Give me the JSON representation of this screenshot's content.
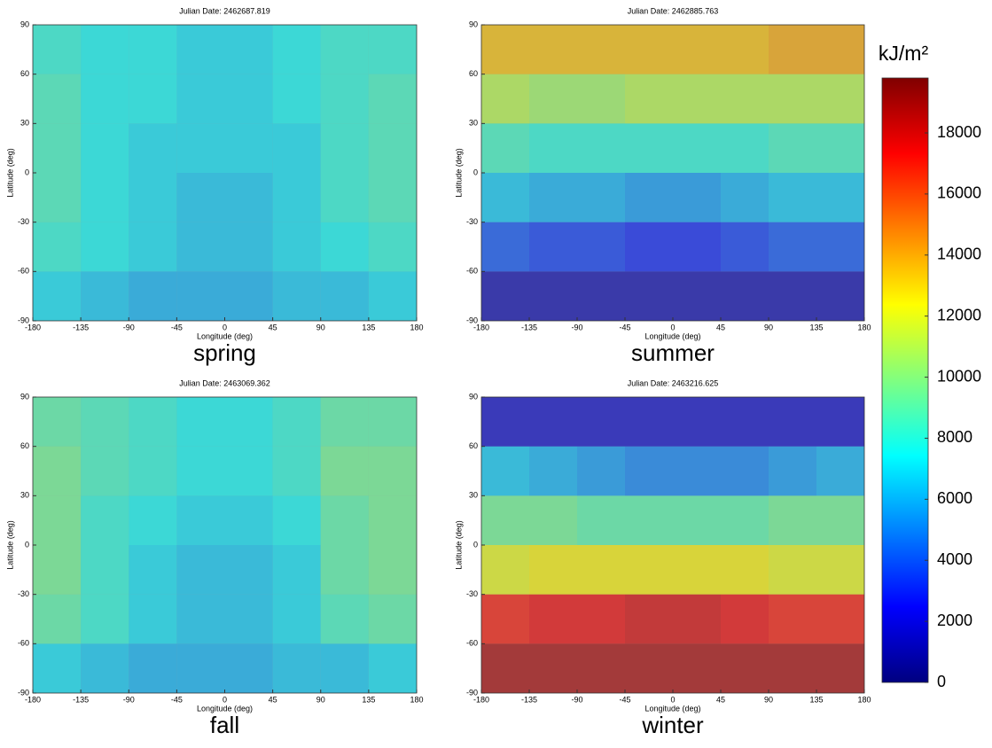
{
  "chart_data": [
    {
      "type": "heatmap",
      "title": "Julian Date: 2462687.819",
      "xlabel": "Longitude (deg)",
      "ylabel": "Latitude (deg)",
      "caption": "spring",
      "xlim": [
        -180,
        180
      ],
      "xticks": [
        -180,
        -135,
        -90,
        -45,
        0,
        45,
        90,
        135,
        180
      ],
      "ylim": [
        -90,
        90
      ],
      "yticks": [
        -90,
        -60,
        -30,
        0,
        30,
        60,
        90
      ],
      "xbins": [
        -180,
        -135,
        -90,
        -45,
        0,
        45,
        90,
        135,
        180
      ],
      "ybins": [
        -90,
        -60,
        -30,
        0,
        30,
        60,
        90
      ],
      "values": [
        [
          7000,
          6500,
          6000,
          6000,
          6000,
          6500,
          6500,
          7000
        ],
        [
          8000,
          7500,
          7000,
          6500,
          6500,
          7000,
          7500,
          8000
        ],
        [
          8500,
          7500,
          7000,
          6500,
          6500,
          7000,
          8000,
          8500
        ],
        [
          8500,
          7500,
          7000,
          7000,
          7000,
          7000,
          8000,
          8500
        ],
        [
          8500,
          7500,
          7500,
          7000,
          7000,
          7500,
          8000,
          8500
        ],
        [
          8000,
          7500,
          7500,
          7000,
          7000,
          7500,
          8000,
          8000
        ]
      ]
    },
    {
      "type": "heatmap",
      "title": "Julian Date: 2462885.763",
      "xlabel": "Longitude (deg)",
      "ylabel": "Latitude (deg)",
      "caption": "summer",
      "xlim": [
        -180,
        180
      ],
      "xticks": [
        -180,
        -135,
        -90,
        -45,
        0,
        45,
        90,
        135,
        180
      ],
      "ylim": [
        -90,
        90
      ],
      "yticks": [
        -90,
        -60,
        -30,
        0,
        30,
        60,
        90
      ],
      "xbins": [
        -180,
        -135,
        -90,
        -45,
        0,
        45,
        90,
        135,
        180
      ],
      "ybins": [
        -90,
        -60,
        -30,
        0,
        30,
        60,
        90
      ],
      "values": [
        [
          1000,
          1000,
          1000,
          1000,
          1000,
          1000,
          1000,
          1000
        ],
        [
          4000,
          3500,
          3500,
          3000,
          3000,
          3500,
          4000,
          4000
        ],
        [
          6500,
          6000,
          6000,
          5500,
          5500,
          6000,
          6500,
          6500
        ],
        [
          8500,
          8000,
          8000,
          8000,
          8000,
          8000,
          8500,
          8500
        ],
        [
          11000,
          10500,
          10500,
          11000,
          11000,
          11000,
          11000,
          11000
        ],
        [
          13500,
          13500,
          13500,
          13500,
          13500,
          13500,
          14000,
          14000
        ]
      ]
    },
    {
      "type": "heatmap",
      "title": "Julian Date: 2463069.362",
      "xlabel": "Longitude (deg)",
      "ylabel": "Latitude (deg)",
      "caption": "fall",
      "xlim": [
        -180,
        180
      ],
      "xticks": [
        -180,
        -135,
        -90,
        -45,
        0,
        45,
        90,
        135,
        180
      ],
      "ylim": [
        -90,
        90
      ],
      "yticks": [
        -90,
        -60,
        -30,
        0,
        30,
        60,
        90
      ],
      "xbins": [
        -180,
        -135,
        -90,
        -45,
        0,
        45,
        90,
        135,
        180
      ],
      "ybins": [
        -90,
        -60,
        -30,
        0,
        30,
        60,
        90
      ],
      "values": [
        [
          7000,
          6500,
          6000,
          6000,
          6000,
          6500,
          6500,
          7000
        ],
        [
          9000,
          8000,
          7000,
          6500,
          6500,
          7000,
          8500,
          9000
        ],
        [
          9500,
          8000,
          7000,
          6500,
          6500,
          7000,
          9000,
          9500
        ],
        [
          9500,
          8000,
          7500,
          7000,
          7000,
          7500,
          9000,
          9500
        ],
        [
          9500,
          8500,
          8000,
          7500,
          7500,
          8000,
          9500,
          9500
        ],
        [
          9000,
          8500,
          8000,
          7500,
          7500,
          8000,
          9000,
          9000
        ]
      ]
    },
    {
      "type": "heatmap",
      "title": "Julian Date: 2463216.625",
      "xlabel": "Longitude (deg)",
      "ylabel": "Latitude (deg)",
      "caption": "winter",
      "xlim": [
        -180,
        180
      ],
      "xticks": [
        -180,
        -135,
        -90,
        -45,
        0,
        45,
        90,
        135,
        180
      ],
      "ylim": [
        -90,
        90
      ],
      "yticks": [
        -90,
        -60,
        -30,
        0,
        30,
        60,
        90
      ],
      "xbins": [
        -180,
        -135,
        -90,
        -45,
        0,
        45,
        90,
        135,
        180
      ],
      "ybins": [
        -90,
        -60,
        -30,
        0,
        30,
        60,
        90
      ],
      "values": [
        [
          19000,
          19000,
          19000,
          19000,
          19000,
          19000,
          19000,
          19000
        ],
        [
          17000,
          17500,
          17500,
          18000,
          18000,
          17500,
          17000,
          17000
        ],
        [
          12000,
          12500,
          12500,
          12500,
          12500,
          12500,
          12000,
          12000
        ],
        [
          9500,
          9500,
          9000,
          9000,
          9000,
          9000,
          9500,
          9500
        ],
        [
          6500,
          6000,
          5500,
          5000,
          5000,
          5000,
          5500,
          6000
        ],
        [
          1500,
          1500,
          1500,
          1500,
          1500,
          1500,
          1500,
          1500
        ]
      ]
    },
    {
      "type": "colorbar",
      "title": "kJ/m²",
      "ylim": [
        0,
        19800
      ],
      "yticks": [
        0,
        2000,
        4000,
        6000,
        8000,
        10000,
        12000,
        14000,
        16000,
        18000
      ]
    }
  ]
}
